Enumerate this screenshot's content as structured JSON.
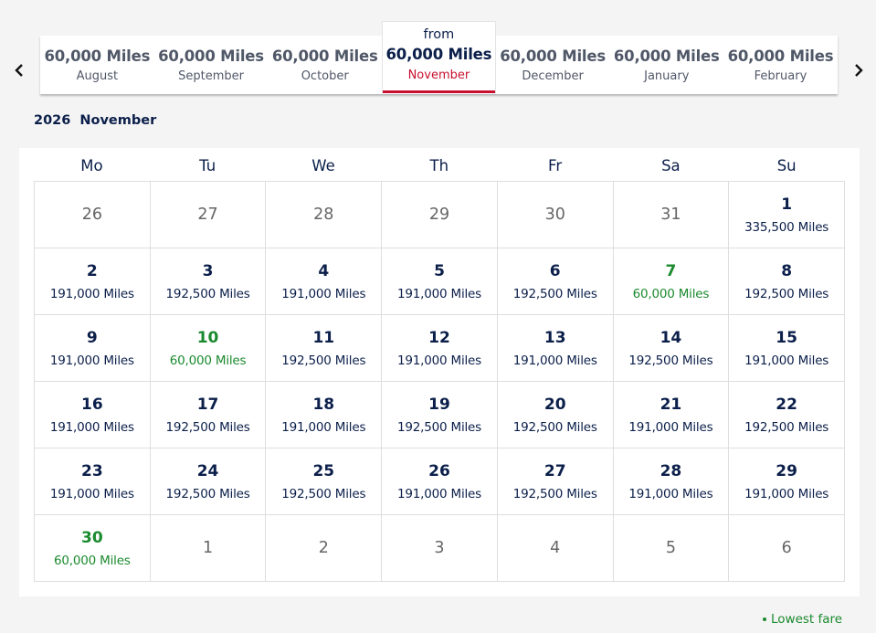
{
  "nav": {
    "prev_icon": "chevron-left-icon",
    "next_icon": "chevron-right-icon"
  },
  "month_tabs": [
    {
      "miles": "60,000 Miles",
      "month": "August"
    },
    {
      "miles": "60,000 Miles",
      "month": "September"
    },
    {
      "miles": "60,000 Miles",
      "month": "October"
    },
    {
      "from": "from",
      "miles": "60,000 Miles",
      "month": "November",
      "active": true
    },
    {
      "miles": "60,000 Miles",
      "month": "December"
    },
    {
      "miles": "60,000 Miles",
      "month": "January"
    },
    {
      "miles": "60,000 Miles",
      "month": "February"
    }
  ],
  "caption": {
    "year": "2026",
    "month": "November"
  },
  "weekdays": [
    "Mo",
    "Tu",
    "We",
    "Th",
    "Fr",
    "Sa",
    "Su"
  ],
  "days": [
    {
      "day": "26",
      "outside": true
    },
    {
      "day": "27",
      "outside": true
    },
    {
      "day": "28",
      "outside": true
    },
    {
      "day": "29",
      "outside": true
    },
    {
      "day": "30",
      "outside": true
    },
    {
      "day": "31",
      "outside": true
    },
    {
      "day": "1",
      "price": "335,500 Miles"
    },
    {
      "day": "2",
      "price": "191,000 Miles"
    },
    {
      "day": "3",
      "price": "192,500 Miles"
    },
    {
      "day": "4",
      "price": "191,000 Miles"
    },
    {
      "day": "5",
      "price": "191,000 Miles"
    },
    {
      "day": "6",
      "price": "192,500 Miles"
    },
    {
      "day": "7",
      "price": "60,000 Miles",
      "lowest": true
    },
    {
      "day": "8",
      "price": "192,500 Miles"
    },
    {
      "day": "9",
      "price": "191,000 Miles"
    },
    {
      "day": "10",
      "price": "60,000 Miles",
      "lowest": true
    },
    {
      "day": "11",
      "price": "192,500 Miles"
    },
    {
      "day": "12",
      "price": "191,000 Miles"
    },
    {
      "day": "13",
      "price": "191,000 Miles"
    },
    {
      "day": "14",
      "price": "192,500 Miles"
    },
    {
      "day": "15",
      "price": "191,000 Miles"
    },
    {
      "day": "16",
      "price": "191,000 Miles"
    },
    {
      "day": "17",
      "price": "192,500 Miles"
    },
    {
      "day": "18",
      "price": "191,000 Miles"
    },
    {
      "day": "19",
      "price": "192,500 Miles"
    },
    {
      "day": "20",
      "price": "192,500 Miles"
    },
    {
      "day": "21",
      "price": "191,000 Miles"
    },
    {
      "day": "22",
      "price": "192,500 Miles"
    },
    {
      "day": "23",
      "price": "191,000 Miles"
    },
    {
      "day": "24",
      "price": "192,500 Miles"
    },
    {
      "day": "25",
      "price": "192,500 Miles"
    },
    {
      "day": "26",
      "price": "191,000 Miles"
    },
    {
      "day": "27",
      "price": "192,500 Miles"
    },
    {
      "day": "28",
      "price": "191,000 Miles"
    },
    {
      "day": "29",
      "price": "191,000 Miles"
    },
    {
      "day": "30",
      "price": "60,000 Miles",
      "lowest": true
    },
    {
      "day": "1",
      "outside": true
    },
    {
      "day": "2",
      "outside": true
    },
    {
      "day": "3",
      "outside": true
    },
    {
      "day": "4",
      "outside": true
    },
    {
      "day": "5",
      "outside": true
    },
    {
      "day": "6",
      "outside": true
    }
  ],
  "legend": {
    "label": "Lowest fare"
  },
  "colors": {
    "navy": "#0b1f4a",
    "accent_red": "#c8102e",
    "lowest_green": "#1b8a2e"
  }
}
